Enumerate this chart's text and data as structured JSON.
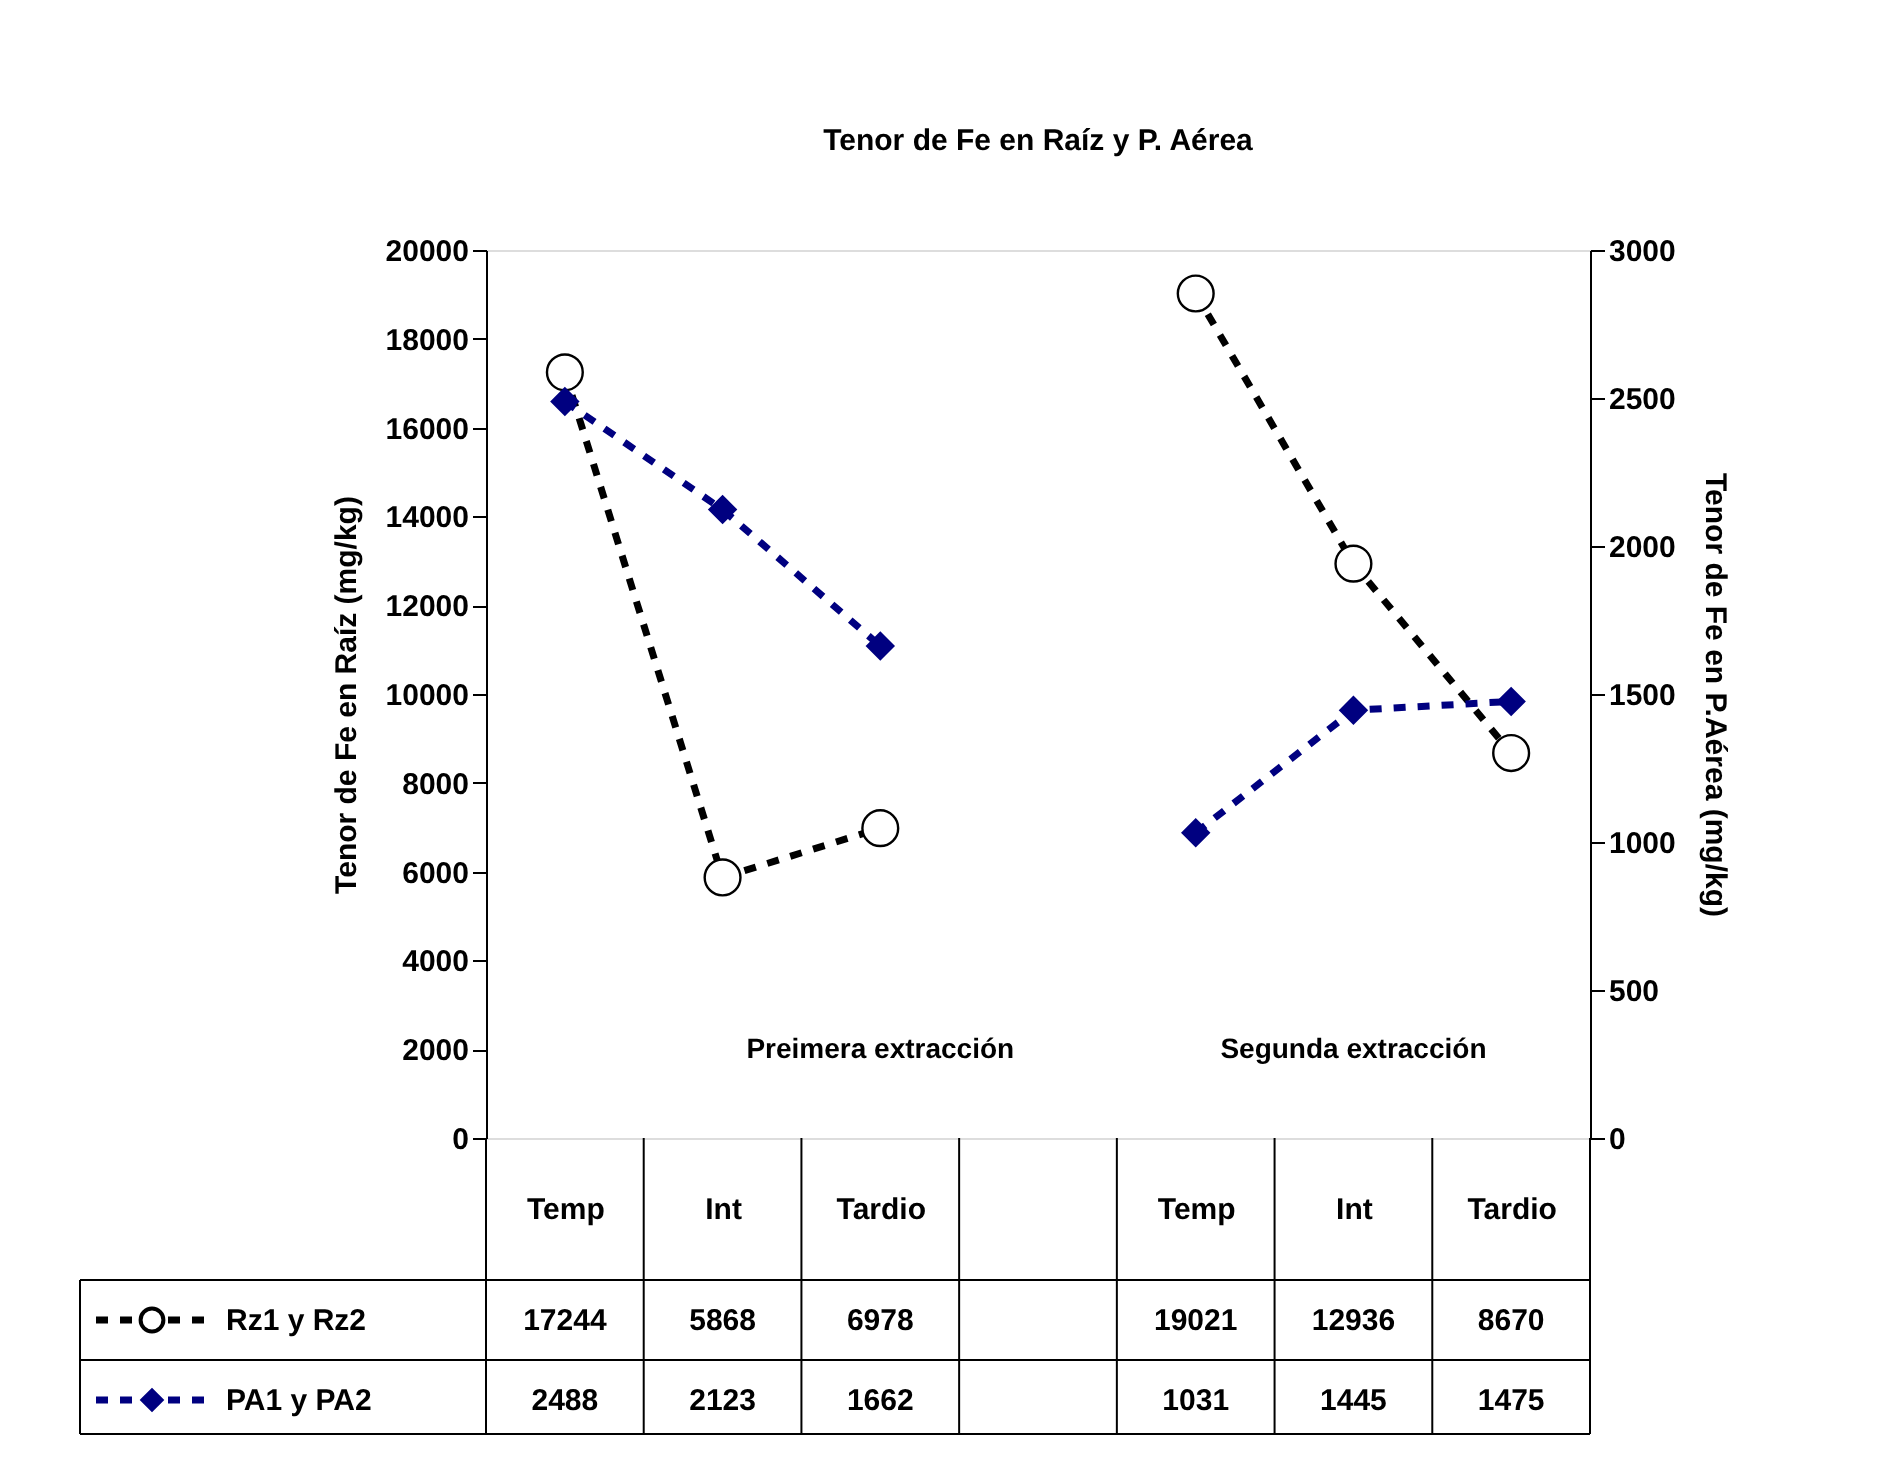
{
  "chart_data": {
    "type": "line",
    "title": "Tenor de Fe en Raíz y P. Aérea",
    "categories": [
      "Temp",
      "Int",
      "Tardio",
      null,
      "Temp",
      "Int",
      "Tardio"
    ],
    "series": [
      {
        "name": "Rz1 y Rz2",
        "color": "#000000",
        "marker": "circle",
        "line_style": "dashed",
        "values": [
          17244,
          5868,
          6978,
          null,
          19021,
          12936,
          8670
        ]
      },
      {
        "name": "PA1 y PA2",
        "color": "#000080",
        "marker": "diamond",
        "line_style": "dashed",
        "axis": "y2",
        "values": [
          2488,
          2123,
          1662,
          null,
          1031,
          1445,
          1475
        ]
      }
    ],
    "ylabel": "Tenor de Fe en Raíz (mg/kg)",
    "y2label": "Tenor de Fe en P.Aérea (mg/kg)",
    "ylim": [
      0,
      20000
    ],
    "yticks": [
      0,
      2000,
      4000,
      6000,
      8000,
      10000,
      12000,
      14000,
      16000,
      18000,
      20000
    ],
    "y2lim": [
      0,
      3000
    ],
    "y2ticks": [
      0,
      500,
      1000,
      1500,
      2000,
      2500,
      3000
    ],
    "annotations": [
      "Preimera extracción",
      "Segunda extracción"
    ],
    "data_labels": true,
    "legend": "bottom left",
    "grid": false
  }
}
